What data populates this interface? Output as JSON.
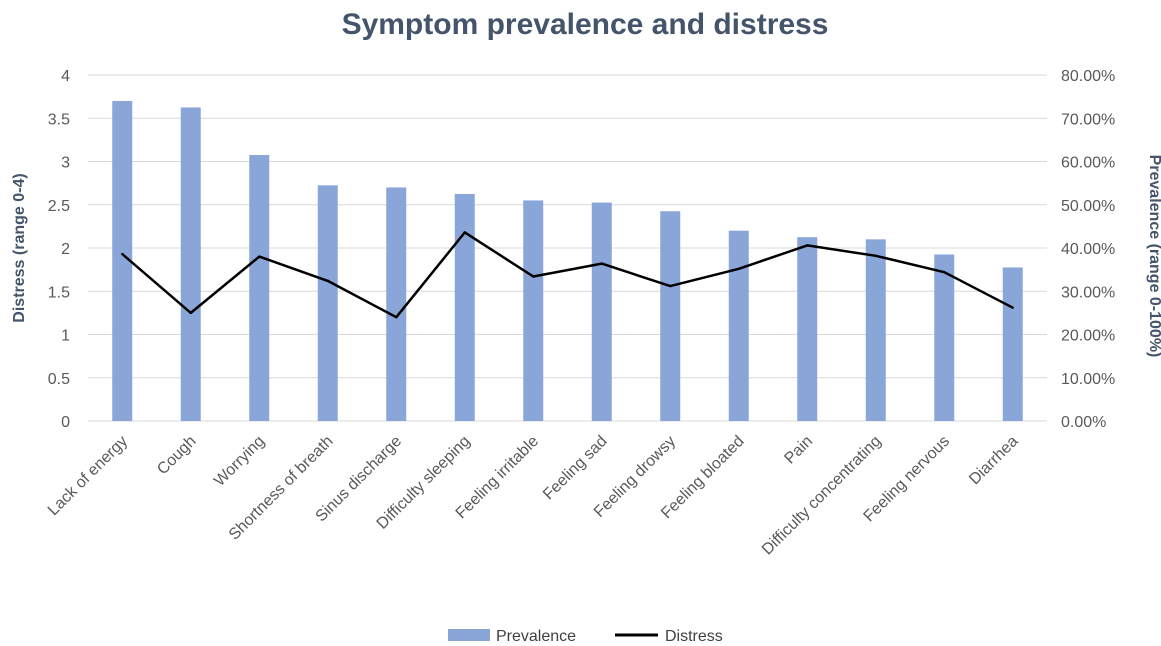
{
  "chart_data": {
    "type": "bar",
    "title": "Symptom prevalence and distress",
    "categories": [
      "Lack of energy",
      "Cough",
      "Worrying",
      "Shortness of breath",
      "Sinus discharge",
      "Difficulty sleeping",
      "Feeling irritable",
      "Feeling sad",
      "Feeling drowsy",
      "Feeling bloated",
      "Pain",
      "Difficulty concentrating",
      "Feeling nervous",
      "Diarrhea"
    ],
    "series": [
      {
        "name": "Prevalence",
        "type": "bar",
        "axis": "right",
        "color": "#8aa6d9",
        "values": [
          0.74,
          0.725,
          0.615,
          0.545,
          0.54,
          0.525,
          0.51,
          0.505,
          0.485,
          0.44,
          0.425,
          0.42,
          0.385,
          0.355
        ]
      },
      {
        "name": "Distress",
        "type": "line",
        "axis": "left",
        "color": "#000000",
        "values": [
          1.93,
          1.25,
          1.9,
          1.62,
          1.2,
          2.18,
          1.67,
          1.82,
          1.56,
          1.76,
          2.03,
          1.91,
          1.72,
          1.31
        ]
      }
    ],
    "ylabel": "Distress (range 0-4)",
    "ylim": [
      0,
      4
    ],
    "yticks": [
      "0",
      "0.5",
      "1",
      "1.5",
      "2",
      "2.5",
      "3",
      "3.5",
      "4"
    ],
    "y2label": "Prevalence (range 0-100%)",
    "y2lim": [
      0,
      0.8
    ],
    "y2ticks": [
      "0.00%",
      "10.00%",
      "20.00%",
      "30.00%",
      "40.00%",
      "50.00%",
      "60.00%",
      "70.00%",
      "80.00%"
    ],
    "grid": true,
    "legend_position": "bottom"
  }
}
